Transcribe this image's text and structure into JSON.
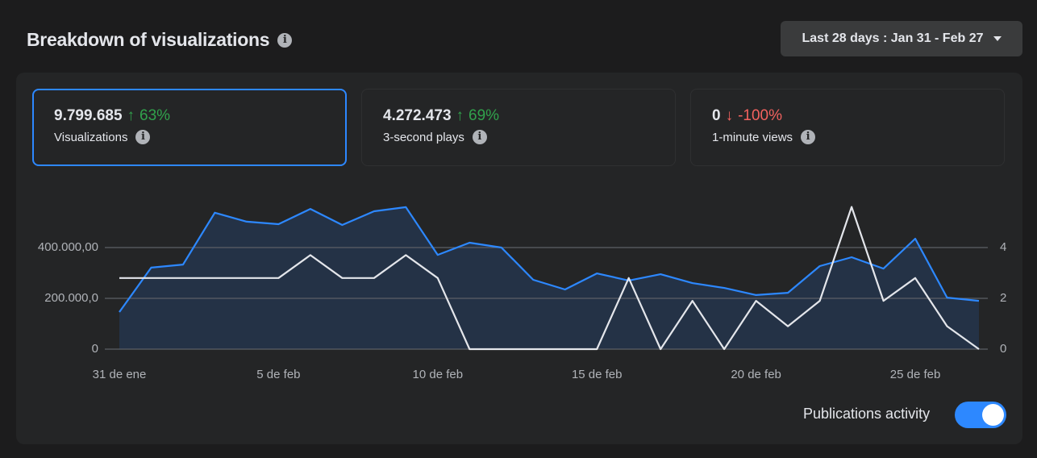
{
  "header": {
    "title": "Breakdown of visualizations",
    "date_range": "Last 28 days : Jan 31 - Feb 27"
  },
  "metrics": [
    {
      "value": "9.799.685",
      "change": "63%",
      "label": "Visualizations"
    },
    {
      "value": "4.272.473",
      "change": "69%",
      "label": "3-second plays"
    },
    {
      "value": "0",
      "change": "-100%",
      "label": "1-minute views"
    }
  ],
  "toggle": {
    "label": "Publications activity"
  },
  "chart_data": {
    "type": "line",
    "categories": [
      "31 de ene",
      null,
      null,
      null,
      null,
      "5 de feb",
      null,
      null,
      null,
      null,
      "10 de feb",
      null,
      null,
      null,
      null,
      "15 de feb",
      null,
      null,
      null,
      null,
      "20 de feb",
      null,
      null,
      null,
      null,
      "25 de feb",
      null,
      null
    ],
    "series": [
      {
        "color": "#2d88ff",
        "area": true,
        "values": [
          146000,
          321000,
          333000,
          537000,
          502000,
          492000,
          552000,
          489000,
          543000,
          559000,
          371000,
          419000,
          400000,
          273000,
          235000,
          298000,
          270000,
          295000,
          260000,
          241000,
          213000,
          222000,
          327000,
          362000,
          317000,
          435000,
          203000,
          190000
        ]
      },
      {
        "color": "#e4e6eb",
        "axis": "y2",
        "values": [
          2.8,
          2.8,
          2.8,
          2.8,
          2.8,
          2.8,
          3.7,
          2.8,
          2.8,
          3.7,
          2.8,
          0,
          0,
          0,
          0,
          0,
          2.8,
          0,
          1.9,
          0,
          1.9,
          0.9,
          1.9,
          5.6,
          1.9,
          2.8,
          0.9,
          0
        ]
      }
    ],
    "ylim": [
      0,
      600000
    ],
    "yticks": [
      0,
      {
        "value": 200000,
        "label": "200.000,0"
      },
      {
        "value": 400000,
        "label": "400.000,00"
      }
    ],
    "y2lim": [
      0,
      6
    ],
    "y2ticks": [
      0,
      2,
      4
    ],
    "grid": true
  }
}
